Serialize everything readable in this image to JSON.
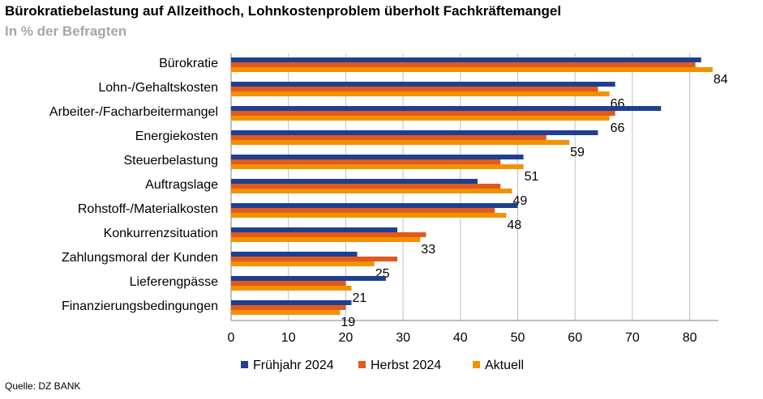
{
  "title": "Bürokratiebelastung auf Allzeithoch, Lohnkostenproblem überholt Fachkräftemangel",
  "subtitle": "In % der Befragten",
  "source": "Quelle: DZ BANK",
  "colors": {
    "fruehjahr": "#1f3f8f",
    "herbst": "#e05a1e",
    "aktuell": "#f39200",
    "grid": "#bfbfbf",
    "axis": "#808080"
  },
  "chart_data": {
    "type": "bar",
    "orientation": "horizontal",
    "categories": [
      "Bürokratie",
      "Lohn-/Gehaltskosten",
      "Arbeiter-/Facharbeitermangel",
      "Energiekosten",
      "Steuerbelastung",
      "Auftragslage",
      "Rohstoff-/Materialkosten",
      "Konkurrenzsituation",
      "Zahlungsmoral der Kunden",
      "Lieferengpässe",
      "Finanzierungsbedingungen"
    ],
    "series": [
      {
        "name": "Frühjahr 2024",
        "values": [
          82,
          67,
          75,
          64,
          51,
          43,
          50,
          29,
          22,
          27,
          21
        ]
      },
      {
        "name": "Herbst 2024",
        "values": [
          81,
          64,
          67,
          55,
          47,
          47,
          46,
          34,
          29,
          20,
          20
        ]
      },
      {
        "name": "Aktuell",
        "values": [
          84,
          66,
          66,
          59,
          51,
          49,
          48,
          33,
          25,
          21,
          19
        ]
      }
    ],
    "data_labels_series": "Aktuell",
    "xlim": [
      0,
      85
    ],
    "xticks": [
      0,
      10,
      20,
      30,
      40,
      50,
      60,
      70,
      80
    ],
    "grid": true,
    "legend_position": "bottom"
  }
}
